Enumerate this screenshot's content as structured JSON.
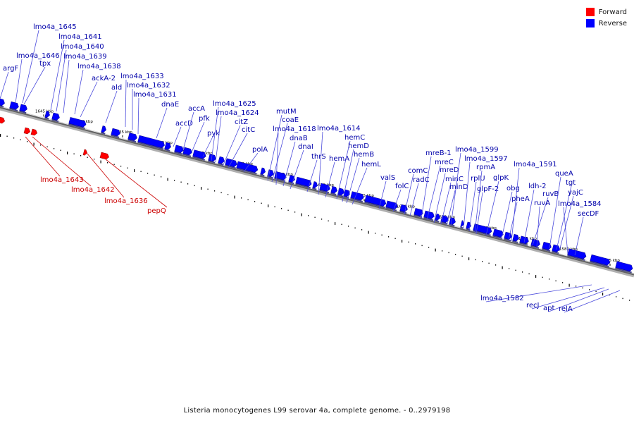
{
  "caption": "Listeria monocytogenes L99 serovar 4a, complete genome. - 0..2979198",
  "legend": [
    {
      "label": "Forward",
      "color": "#ff0000"
    },
    {
      "label": "Reverse",
      "color": "#0000ff"
    }
  ],
  "strand_colors": {
    "forward": "#ff0000",
    "reverse": "#0000ff",
    "forward_label": "#cc0000",
    "reverse_label": "#0000aa"
  },
  "tick_labels": [
    "1645 kbp",
    "1640 kbp",
    "1635 kbp",
    "1630 kbp",
    "1625 kbp",
    "1620 kbp",
    "1615 kbp",
    "1610 kbp",
    "1605 kbp",
    "1600 kbp",
    "1595 kbp",
    "1590 kbp",
    "1585 kbp",
    "1580 kbp",
    "1575 kbp"
  ],
  "reverse_genes": [
    "argF",
    "lmo4a_1646",
    "tpx",
    "lmo4a_1645",
    "lmo4a_1641",
    "lmo4a_1640",
    "lmo4a_1639",
    "lmo4a_1638",
    "ackA-2",
    "ald",
    "lmo4a_1633",
    "lmo4a_1632",
    "lmo4a_1631",
    "dnaE",
    "accD",
    "accA",
    "pfk",
    "pyk",
    "lmo4a_1625",
    "lmo4a_1624",
    "citZ",
    "citC",
    "polA",
    "mutM",
    "coaE",
    "lmo4a_1618",
    "dnaB",
    "dnaI",
    "thrS",
    "lmo4a_1614",
    "hemA",
    "hemC",
    "hemD",
    "hemB",
    "hemL",
    "valS",
    "folC",
    "comC",
    "radC",
    "mreB-1",
    "mreC",
    "mreD",
    "minC",
    "minD",
    "lmo4a_1599",
    "lmo4a_1597",
    "rplU",
    "rpmA",
    "glpF-2",
    "glpK",
    "obg",
    "pheA",
    "lmo4a_1591",
    "ldh-2",
    "ruvB",
    "ruvA",
    "queA",
    "tgt",
    "yajC",
    "lmo4a_1584",
    "secDF",
    "lmo4a_1582",
    "recJ",
    "apt",
    "relA"
  ],
  "forward_genes": [
    "lmo4a_1643",
    "lmo4a_1642",
    "lmo4a_1636",
    "pepQ"
  ]
}
